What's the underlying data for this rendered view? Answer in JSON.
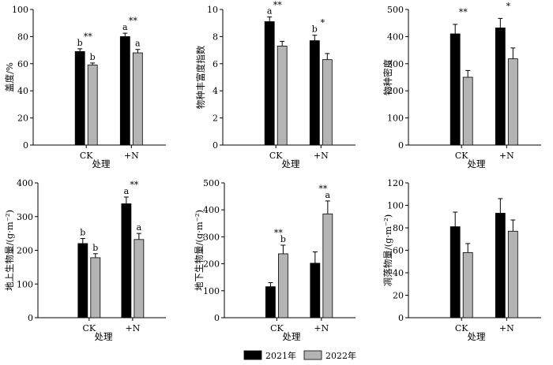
{
  "legend": {
    "items": [
      {
        "label": "2021年",
        "color": "#000000"
      },
      {
        "label": "2022年",
        "color": "#b4b4b4"
      }
    ]
  },
  "chart_data": [
    {
      "type": "bar",
      "categories": [
        "CK",
        "+N"
      ],
      "xlabel": "处理",
      "ylabel": "盖度/%",
      "ylim": [
        0,
        100
      ],
      "yticks": [
        0,
        20,
        40,
        60,
        80,
        100
      ],
      "series": [
        {
          "name": "2021年",
          "values": [
            69,
            80
          ],
          "errors": [
            2,
            2.5
          ],
          "letters": [
            "b",
            "a"
          ]
        },
        {
          "name": "2022年",
          "values": [
            59,
            68
          ],
          "errors": [
            1.5,
            2.5
          ],
          "letters": [
            "b",
            "a"
          ]
        }
      ],
      "significance": [
        "**",
        "**"
      ]
    },
    {
      "type": "bar",
      "categories": [
        "CK",
        "+N"
      ],
      "xlabel": "处理",
      "ylabel": "物种丰富度指数",
      "ylim": [
        0,
        10
      ],
      "yticks": [
        0,
        2,
        4,
        6,
        8,
        10
      ],
      "series": [
        {
          "name": "2021年",
          "values": [
            9.1,
            7.7
          ],
          "errors": [
            0.35,
            0.4
          ],
          "letters": [
            "a",
            "b"
          ]
        },
        {
          "name": "2022年",
          "values": [
            7.3,
            6.3
          ],
          "errors": [
            0.35,
            0.45
          ],
          "letters": [
            "",
            ""
          ]
        }
      ],
      "significance": [
        "**",
        "*"
      ]
    },
    {
      "type": "bar",
      "categories": [
        "CK",
        "+N"
      ],
      "xlabel": "处理",
      "ylabel": "物种密度",
      "ylim": [
        0,
        500
      ],
      "yticks": [
        0,
        100,
        200,
        300,
        400,
        500
      ],
      "series": [
        {
          "name": "2021年",
          "values": [
            410,
            432
          ],
          "errors": [
            35,
            35
          ],
          "letters": [
            "",
            ""
          ]
        },
        {
          "name": "2022年",
          "values": [
            250,
            318
          ],
          "errors": [
            25,
            40
          ],
          "letters": [
            "",
            ""
          ]
        }
      ],
      "significance": [
        "**",
        "*"
      ]
    },
    {
      "type": "bar",
      "categories": [
        "CK",
        "+N"
      ],
      "xlabel": "处理",
      "ylabel": "地上生物量/(g·m⁻²)",
      "ylim": [
        0,
        400
      ],
      "yticks": [
        0,
        100,
        200,
        300,
        400
      ],
      "series": [
        {
          "name": "2021年",
          "values": [
            220,
            338
          ],
          "errors": [
            15,
            20
          ],
          "letters": [
            "b",
            "a"
          ]
        },
        {
          "name": "2022年",
          "values": [
            178,
            232
          ],
          "errors": [
            12,
            18
          ],
          "letters": [
            "b",
            "a"
          ]
        }
      ],
      "significance": [
        "",
        "**"
      ]
    },
    {
      "type": "bar",
      "categories": [
        "CK",
        "+N"
      ],
      "xlabel": "处理",
      "ylabel": "地下生物量/(g·m⁻²)",
      "ylim": [
        0,
        500
      ],
      "yticks": [
        0,
        100,
        200,
        300,
        400,
        500
      ],
      "series": [
        {
          "name": "2021年",
          "values": [
            115,
            202
          ],
          "errors": [
            15,
            42
          ],
          "letters": [
            "",
            ""
          ]
        },
        {
          "name": "2022年",
          "values": [
            237,
            385
          ],
          "errors": [
            32,
            48
          ],
          "letters": [
            "b",
            "a"
          ]
        }
      ],
      "significance": [
        "**",
        "**"
      ]
    },
    {
      "type": "bar",
      "categories": [
        "CK",
        "+N"
      ],
      "xlabel": "处理",
      "ylabel": "凋落物量/(g·m⁻²)",
      "ylim": [
        0,
        120
      ],
      "yticks": [
        0,
        20,
        40,
        60,
        80,
        100,
        120
      ],
      "series": [
        {
          "name": "2021年",
          "values": [
            81,
            93
          ],
          "errors": [
            13,
            13
          ],
          "letters": [
            "",
            ""
          ]
        },
        {
          "name": "2022年",
          "values": [
            58,
            77
          ],
          "errors": [
            8,
            10
          ],
          "letters": [
            "",
            ""
          ]
        }
      ],
      "significance": [
        "",
        ""
      ]
    }
  ]
}
